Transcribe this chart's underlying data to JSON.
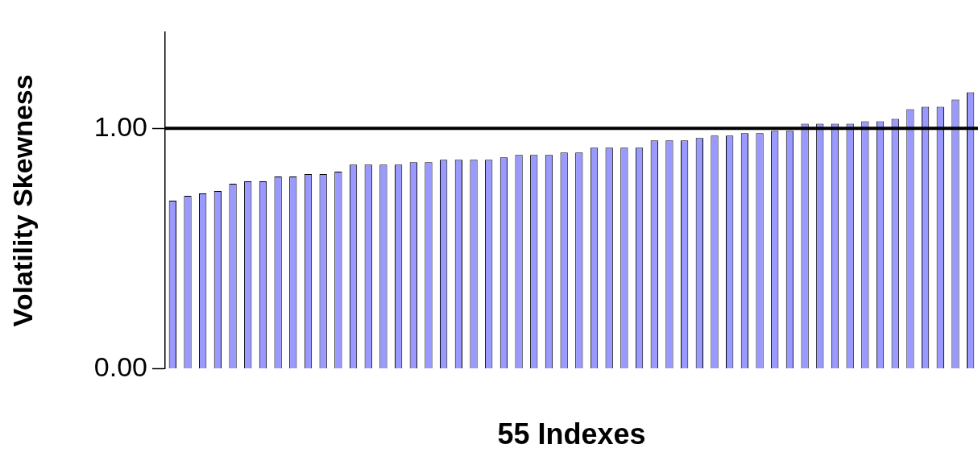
{
  "chart_data": {
    "type": "bar",
    "xlabel": "55 Indexes",
    "ylabel": "Volatility Skewness",
    "categories": [
      null,
      null,
      null,
      null,
      null,
      null,
      null,
      null,
      null,
      null,
      null,
      null,
      null,
      null,
      null,
      null,
      null,
      null,
      null,
      null,
      null,
      null,
      null,
      null,
      null,
      null,
      null,
      null,
      null,
      null,
      null,
      null,
      null,
      null,
      null,
      null,
      null,
      null,
      null,
      null,
      null,
      null,
      null,
      null,
      null,
      null,
      null,
      null,
      null,
      null,
      null,
      null,
      null,
      null
    ],
    "values": [
      0.7,
      0.72,
      0.73,
      0.74,
      0.77,
      0.78,
      0.78,
      0.8,
      0.8,
      0.81,
      0.81,
      0.82,
      0.85,
      0.85,
      0.85,
      0.85,
      0.86,
      0.86,
      0.87,
      0.87,
      0.87,
      0.87,
      0.88,
      0.89,
      0.89,
      0.89,
      0.9,
      0.9,
      0.92,
      0.92,
      0.92,
      0.92,
      0.95,
      0.95,
      0.95,
      0.96,
      0.97,
      0.97,
      0.98,
      0.98,
      0.99,
      0.99,
      1.02,
      1.02,
      1.02,
      1.02,
      1.03,
      1.03,
      1.04,
      1.08,
      1.09,
      1.09,
      1.12,
      1.15
    ],
    "color": "#9999ff",
    "ylim": [
      0,
      1.4
    ],
    "yticks": [
      {
        "value": 0,
        "label": "0.00"
      },
      {
        "value": 1,
        "label": "1.00"
      }
    ],
    "ref_lines": [
      {
        "axis": "y",
        "value": 1,
        "color": "#000000",
        "line_style": "solid"
      }
    ],
    "grid": false,
    "legend": false
  }
}
